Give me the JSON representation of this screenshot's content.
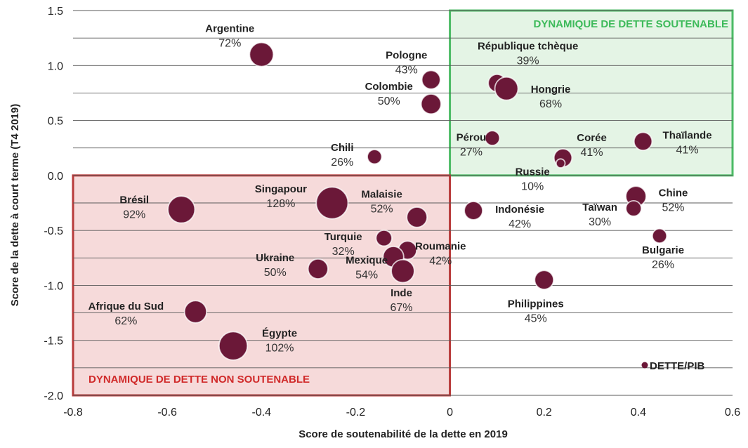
{
  "chart_data": {
    "type": "scatter",
    "subtype": "bubble",
    "xlabel": "Score de soutenabilité de la dette en 2019",
    "ylabel": "Score de la dette à court terme (T4 2019)",
    "xlim": [
      -0.8,
      0.6
    ],
    "ylim": [
      -2.0,
      1.5
    ],
    "x_ticks": [
      "-0.8",
      "-0.6",
      "-0.4",
      "-0.2",
      "0",
      "0.2",
      "0.4",
      "0.6"
    ],
    "y_ticks": [
      "1.5",
      "1.0",
      "0.5",
      "0.0",
      "-0.5",
      "-1.0",
      "-1.5",
      "-2.0"
    ],
    "grid": "horizontal",
    "bubble_color": "#6b1838",
    "zones": [
      {
        "name": "sustainable",
        "label": "DYNAMIQUE DE DETTE SOUTENABLE",
        "x": [
          0.0,
          0.6
        ],
        "y": [
          0.0,
          1.5
        ],
        "stroke": "#4dbb66",
        "fill": "#dff2e1",
        "text_color": "#3dba5a"
      },
      {
        "name": "unsustainable",
        "label": "DYNAMIQUE DE DETTE NON SOUTENABLE",
        "x": [
          -0.8,
          0.0
        ],
        "y": [
          -2.0,
          0.0
        ],
        "stroke": "#b83a3a",
        "fill": "#f5d3d3",
        "text_color": "#d02a2a"
      }
    ],
    "points": [
      {
        "name": "Argentine",
        "x": -0.4,
        "y": 1.1,
        "debt_pct": "72%",
        "debt": 72
      },
      {
        "name": "Pologne",
        "x": -0.04,
        "y": 0.87,
        "debt_pct": "43%",
        "debt": 43
      },
      {
        "name": "Colombie",
        "x": -0.04,
        "y": 0.65,
        "debt_pct": "50%",
        "debt": 50
      },
      {
        "name": "République tchèque",
        "x": 0.1,
        "y": 0.84,
        "debt_pct": "39%",
        "debt": 39
      },
      {
        "name": "Hongrie",
        "x": 0.12,
        "y": 0.79,
        "debt_pct": "68%",
        "debt": 68
      },
      {
        "name": "Chili",
        "x": -0.16,
        "y": 0.17,
        "debt_pct": "26%",
        "debt": 26
      },
      {
        "name": "Pérou",
        "x": 0.09,
        "y": 0.34,
        "debt_pct": "27%",
        "debt": 27
      },
      {
        "name": "Corée",
        "x": 0.24,
        "y": 0.16,
        "debt_pct": "41%",
        "debt": 41
      },
      {
        "name": "Thaïlande",
        "x": 0.41,
        "y": 0.31,
        "debt_pct": "41%",
        "debt": 41
      },
      {
        "name": "Russie",
        "x": 0.235,
        "y": 0.11,
        "debt_pct": "10%",
        "debt": 10
      },
      {
        "name": "Chine",
        "x": 0.395,
        "y": -0.19,
        "debt_pct": "52%",
        "debt": 52
      },
      {
        "name": "Taïwan",
        "x": 0.39,
        "y": -0.3,
        "debt_pct": "30%",
        "debt": 30
      },
      {
        "name": "Indonésie",
        "x": 0.05,
        "y": -0.32,
        "debt_pct": "42%",
        "debt": 42
      },
      {
        "name": "Bulgarie",
        "x": 0.445,
        "y": -0.55,
        "debt_pct": "26%",
        "debt": 26
      },
      {
        "name": "Brésil",
        "x": -0.57,
        "y": -0.31,
        "debt_pct": "92%",
        "debt": 92
      },
      {
        "name": "Singapour",
        "x": -0.25,
        "y": -0.25,
        "debt_pct": "128%",
        "debt": 128
      },
      {
        "name": "Malaisie",
        "x": -0.07,
        "y": -0.38,
        "debt_pct": "52%",
        "debt": 52
      },
      {
        "name": "Turquie",
        "x": -0.14,
        "y": -0.57,
        "debt_pct": "32%",
        "debt": 32
      },
      {
        "name": "Roumanie",
        "x": -0.09,
        "y": -0.68,
        "debt_pct": "42%",
        "debt": 42
      },
      {
        "name": "Mexique",
        "x": -0.12,
        "y": -0.74,
        "debt_pct": "54%",
        "debt": 54
      },
      {
        "name": "Ukraine",
        "x": -0.28,
        "y": -0.85,
        "debt_pct": "50%",
        "debt": 50
      },
      {
        "name": "Inde",
        "x": -0.1,
        "y": -0.87,
        "debt_pct": "67%",
        "debt": 67
      },
      {
        "name": "Philippines",
        "x": 0.2,
        "y": -0.95,
        "debt_pct": "45%",
        "debt": 45
      },
      {
        "name": "Afrique du Sud",
        "x": -0.54,
        "y": -1.24,
        "debt_pct": "62%",
        "debt": 62
      },
      {
        "name": "Égypte",
        "x": -0.46,
        "y": -1.55,
        "debt_pct": "102%",
        "debt": 102
      }
    ],
    "legend": {
      "label": "DETTE/PIB",
      "placement": "bottom-right"
    }
  }
}
